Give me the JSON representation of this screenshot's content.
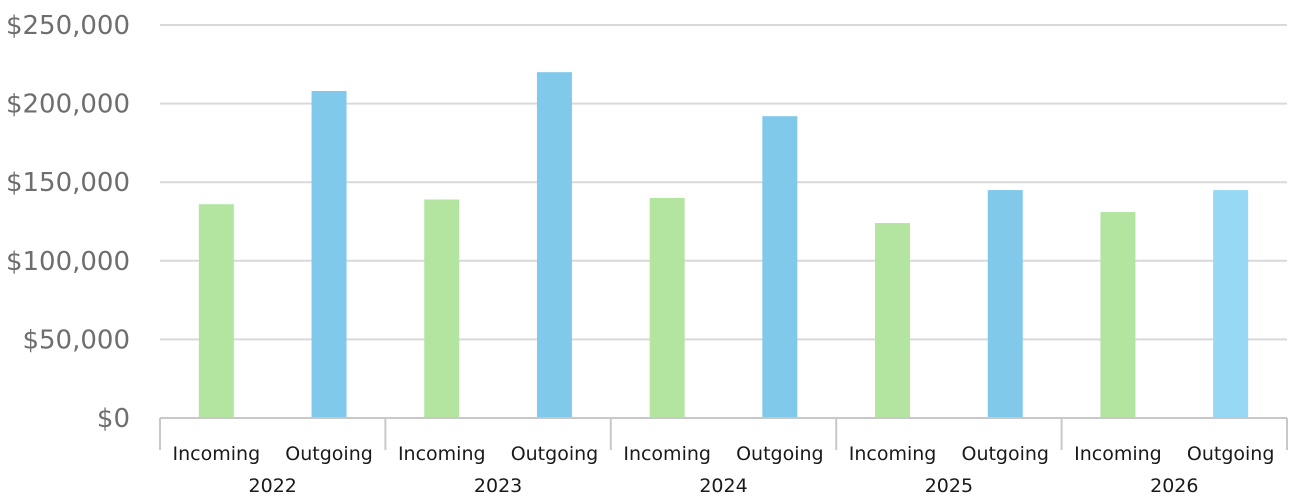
{
  "chart_data": {
    "type": "bar",
    "ylim": [
      0,
      250000
    ],
    "yticks": [
      "$0",
      "$50,000",
      "$100,000",
      "$150,000",
      "$200,000",
      "$250,000"
    ],
    "grid": true,
    "groups": [
      {
        "label": "2022",
        "bars": [
          {
            "category": "Incoming",
            "value": 136000,
            "color": "#b3e5a1"
          },
          {
            "category": "Outgoing",
            "value": 208000,
            "color": "#80c9ea"
          }
        ]
      },
      {
        "label": "2023",
        "bars": [
          {
            "category": "Incoming",
            "value": 139000,
            "color": "#b3e5a1"
          },
          {
            "category": "Outgoing",
            "value": 220000,
            "color": "#80c9ea"
          }
        ]
      },
      {
        "label": "2024",
        "bars": [
          {
            "category": "Incoming",
            "value": 140000,
            "color": "#b3e5a1"
          },
          {
            "category": "Outgoing",
            "value": 192000,
            "color": "#80c9ea"
          }
        ]
      },
      {
        "label": "2025",
        "bars": [
          {
            "category": "Incoming",
            "value": 124000,
            "color": "#b3e5a1"
          },
          {
            "category": "Outgoing",
            "value": 145000,
            "color": "#80c9ea"
          }
        ]
      },
      {
        "label": "2026",
        "bars": [
          {
            "category": "Incoming",
            "value": 131000,
            "color": "#b3e5a1"
          },
          {
            "category": "Outgoing",
            "value": 145000,
            "color": "#97d9f4"
          }
        ]
      }
    ],
    "colors": {
      "gridline": "#d9d9d9",
      "axis": "#c8c8c8"
    }
  }
}
